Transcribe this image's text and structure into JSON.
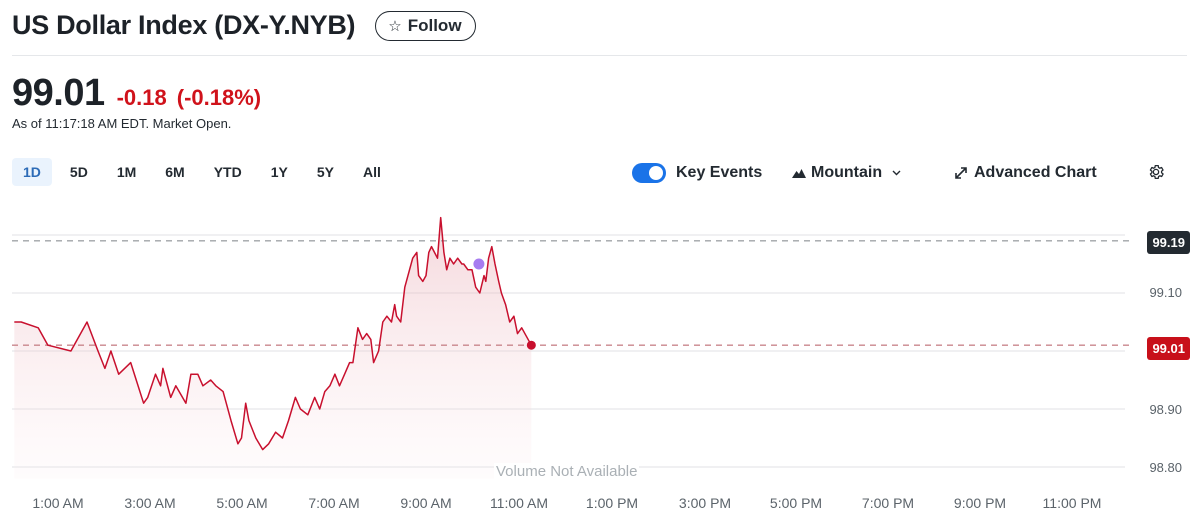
{
  "header": {
    "title": "US Dollar Index (DX-Y.NYB)",
    "follow_label": "Follow",
    "follow_icon": "star-outline-icon"
  },
  "quote": {
    "price": "99.01",
    "change": "-0.18",
    "change_pct": "(-0.18%)",
    "as_of": "As of 11:17:18 AM EDT. Market Open.",
    "change_color": "#d0121b"
  },
  "range_tabs": [
    {
      "label": "1D",
      "active": true
    },
    {
      "label": "5D",
      "active": false
    },
    {
      "label": "1M",
      "active": false
    },
    {
      "label": "6M",
      "active": false
    },
    {
      "label": "YTD",
      "active": false
    },
    {
      "label": "1Y",
      "active": false
    },
    {
      "label": "5Y",
      "active": false
    },
    {
      "label": "All",
      "active": false
    }
  ],
  "chart_tools": {
    "key_events_label": "Key Events",
    "key_events_on": true,
    "chart_type_label": "Mountain",
    "chart_type_icon": "mountain-icon",
    "advanced_label": "Advanced Chart",
    "advanced_icon": "expand-arrows-icon",
    "settings_icon": "gear-icon"
  },
  "chart_data": {
    "type": "area",
    "title": "US Dollar Index (DX-Y.NYB) 1D",
    "xlabel": "",
    "ylabel": "",
    "ylim": [
      98.78,
      99.24
    ],
    "y_ticks": [
      "98.80",
      "98.90",
      "99.10"
    ],
    "x_ticks": [
      "1:00 AM",
      "3:00 AM",
      "5:00 AM",
      "7:00 AM",
      "9:00 AM",
      "11:00 AM",
      "1:00 PM",
      "3:00 PM",
      "5:00 PM",
      "7:00 PM",
      "9:00 PM",
      "11:00 PM"
    ],
    "previous_close": "99.19",
    "last_price": "99.01",
    "volume_note": "Volume Not Available",
    "line_color": "#c8102e",
    "series": [
      {
        "name": "DX-Y.NYB",
        "x_hours": [
          0.05,
          0.2,
          0.57,
          0.78,
          1.28,
          1.63,
          1.87,
          2.02,
          2.15,
          2.32,
          2.58,
          2.86,
          2.95,
          3.12,
          3.23,
          3.28,
          3.45,
          3.56,
          3.78,
          3.89,
          4.04,
          4.15,
          4.32,
          4.43,
          4.59,
          4.76,
          4.91,
          4.99,
          5.08,
          5.15,
          5.3,
          5.45,
          5.58,
          5.73,
          5.88,
          6.01,
          6.16,
          6.27,
          6.43,
          6.58,
          6.69,
          6.8,
          6.91,
          7.02,
          7.12,
          7.23,
          7.34,
          7.41,
          7.52,
          7.62,
          7.71,
          7.8,
          7.86,
          7.97,
          8.06,
          8.15,
          8.25,
          8.32,
          8.36,
          8.45,
          8.54,
          8.71,
          8.8,
          8.84,
          8.93,
          9.0,
          9.06,
          9.12,
          9.25,
          9.32,
          9.39,
          9.45,
          9.52,
          9.6,
          9.69,
          9.78,
          9.82,
          9.91,
          10.0,
          10.08,
          10.17,
          10.26,
          10.3,
          10.36,
          10.43,
          10.5,
          10.58,
          10.64,
          10.73,
          10.82,
          10.91,
          10.99,
          11.08,
          11.29
        ],
        "values": [
          99.05,
          99.05,
          99.04,
          99.01,
          99.0,
          99.05,
          99.0,
          98.97,
          99.0,
          98.96,
          98.98,
          98.91,
          98.92,
          98.96,
          98.94,
          98.97,
          98.92,
          98.94,
          98.91,
          98.96,
          98.96,
          98.94,
          98.95,
          98.94,
          98.93,
          98.88,
          98.84,
          98.85,
          98.91,
          98.88,
          98.85,
          98.83,
          98.84,
          98.86,
          98.85,
          98.88,
          98.92,
          98.9,
          98.89,
          98.92,
          98.9,
          98.93,
          98.94,
          98.96,
          98.94,
          98.96,
          98.98,
          98.98,
          99.04,
          99.02,
          99.03,
          99.02,
          98.98,
          99.0,
          99.05,
          99.06,
          99.05,
          99.08,
          99.06,
          99.05,
          99.11,
          99.16,
          99.17,
          99.13,
          99.12,
          99.13,
          99.17,
          99.18,
          99.16,
          99.23,
          99.17,
          99.14,
          99.16,
          99.15,
          99.16,
          99.15,
          99.15,
          99.14,
          99.14,
          99.11,
          99.1,
          99.13,
          99.12,
          99.16,
          99.18,
          99.15,
          99.12,
          99.1,
          99.08,
          99.05,
          99.06,
          99.03,
          99.04,
          99.01
        ]
      }
    ],
    "key_event": {
      "x_hour": 10.15,
      "value": 99.15,
      "color": "#a77cf0"
    }
  }
}
